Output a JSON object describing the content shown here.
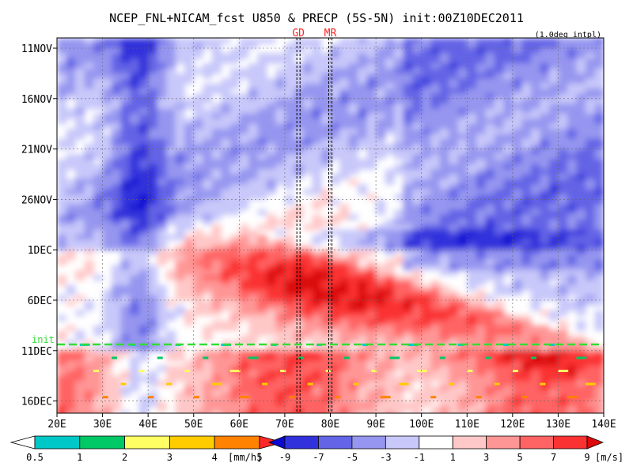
{
  "chart_data": {
    "type": "heatmap",
    "title": "NCEP_FNL+NICAM_fcst U850 & PRECP (5S-5N) init:00Z10DEC2011",
    "subtitle": "(1.0deg intpl)",
    "x_ticks": [
      "20E",
      "30E",
      "40E",
      "50E",
      "60E",
      "70E",
      "80E",
      "90E",
      "100E",
      "110E",
      "120E",
      "130E",
      "140E"
    ],
    "xlim": [
      20,
      140
    ],
    "y_ticks": [
      "11NOV",
      "16NOV",
      "21NOV",
      "26NOV",
      "1DEC",
      "6DEC",
      "11DEC",
      "16DEC"
    ],
    "y_start_day": 0,
    "y_end_day": 36,
    "markers": [
      {
        "label": "GD",
        "lon": 73
      },
      {
        "label": "MR",
        "lon": 80
      }
    ],
    "init_line": {
      "label": "init",
      "day": 29
    },
    "precip_legend": {
      "levels": [
        "0.5",
        "1",
        "2",
        "3",
        "4",
        "5"
      ],
      "unit": "[mm/h]",
      "colors": [
        "#ffffff",
        "#00c8c8",
        "#00c864",
        "#ffff64",
        "#ffcc00",
        "#ff8200",
        "#ff2828"
      ]
    },
    "wind_legend": {
      "levels": [
        "-9",
        "-7",
        "-5",
        "-3",
        "-1",
        "1",
        "3",
        "5",
        "7",
        "9"
      ],
      "unit": "[m/s]",
      "colors": [
        "#0a0ad2",
        "#3232dc",
        "#6464e6",
        "#9696f0",
        "#c8c8fa",
        "#ffffff",
        "#ffc8c8",
        "#ff9696",
        "#ff6464",
        "#fa3232",
        "#dc0a0a"
      ]
    },
    "colors": {
      "init_line": "#33dd33",
      "marker_label": "#ff2020"
    }
  }
}
